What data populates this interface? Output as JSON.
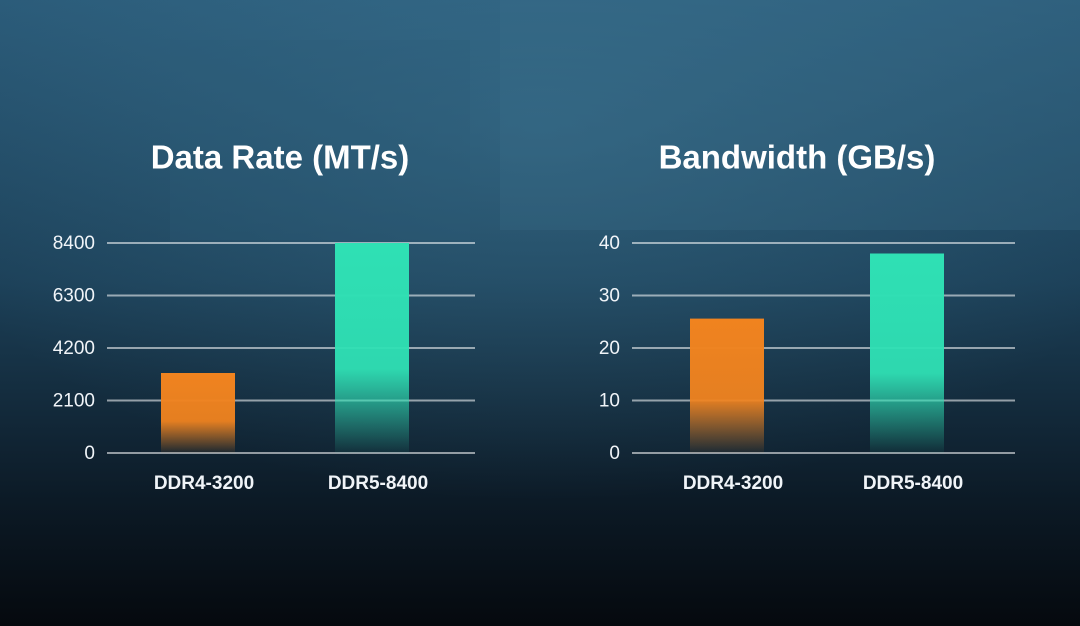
{
  "chart_data": [
    {
      "type": "bar",
      "title": "Data Rate (MT/s)",
      "categories": [
        "DDR4-3200",
        "DDR5-8400"
      ],
      "values": [
        3200,
        8400
      ],
      "colors": [
        "#f0831f",
        "#2fe0b4"
      ],
      "ylim": [
        0,
        8400
      ],
      "yticks": [
        0,
        2100,
        4200,
        6300,
        8400
      ],
      "grid": true
    },
    {
      "type": "bar",
      "title": "Bandwidth (GB/s)",
      "categories": [
        "DDR4-3200",
        "DDR5-8400"
      ],
      "values": [
        25.6,
        38
      ],
      "colors": [
        "#f0831f",
        "#2fe0b4"
      ],
      "ylim": [
        0,
        40
      ],
      "yticks": [
        0,
        10,
        20,
        30,
        40
      ],
      "grid": true
    }
  ]
}
